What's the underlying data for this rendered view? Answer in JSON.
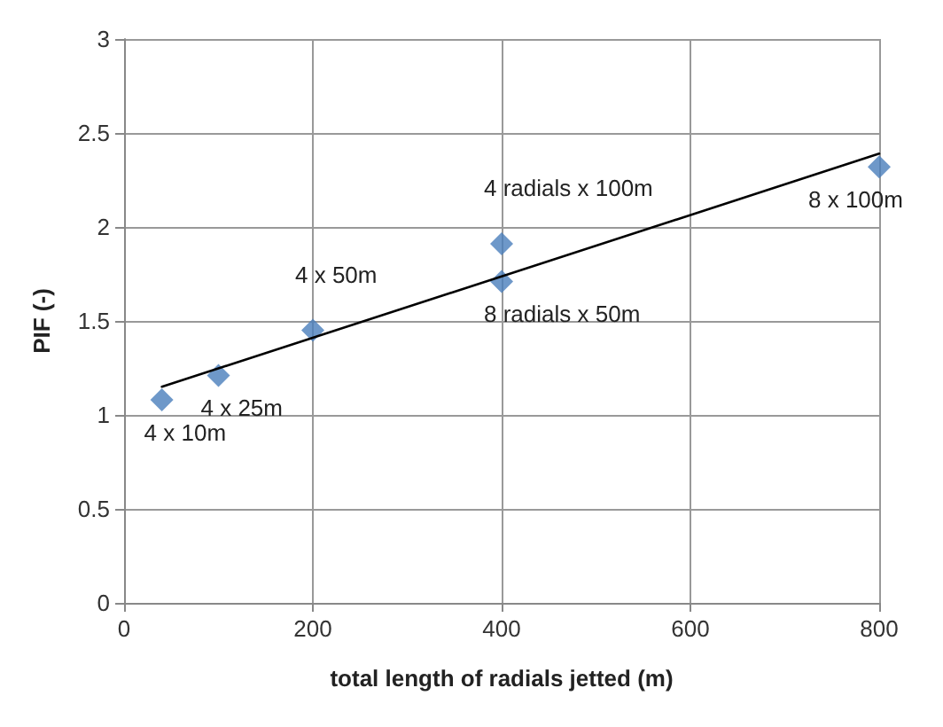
{
  "chart_data": {
    "type": "scatter",
    "xlabel": "total length of radials jetted (m)",
    "ylabel": "PIF (-)",
    "x": [
      40,
      100,
      200,
      400,
      400,
      800
    ],
    "series": [
      {
        "color": "#4a7ebb",
        "values": [
          1.08,
          1.21,
          1.45,
          1.91,
          1.71,
          2.32
        ],
        "marker": "diamond"
      },
      {
        "type": "line",
        "color": "#000000",
        "x": [
          40,
          800
        ],
        "values": [
          1.15,
          2.39
        ],
        "marker": "none",
        "line_style": "solid"
      }
    ],
    "xlim": [
      0,
      800
    ],
    "xticks": [
      0,
      200,
      400,
      600,
      800
    ],
    "ylim": [
      0,
      3
    ],
    "yticks": [
      0,
      0.5,
      1,
      1.5,
      2,
      2.5,
      3
    ],
    "grid": true,
    "annotations": [
      {
        "text": "4 x 10m",
        "x": 40,
        "y": 1.08
      },
      {
        "text": "4 x 25m",
        "x": 100,
        "y": 1.21
      },
      {
        "text": "4 x 50m",
        "x": 200,
        "y": 1.45
      },
      {
        "text": "4 radials x 100m",
        "x": 400,
        "y": 1.91
      },
      {
        "text": "8 radials x 50m",
        "x": 400,
        "y": 1.71
      },
      {
        "text": "8 x 100m",
        "x": 800,
        "y": 2.32
      }
    ]
  }
}
